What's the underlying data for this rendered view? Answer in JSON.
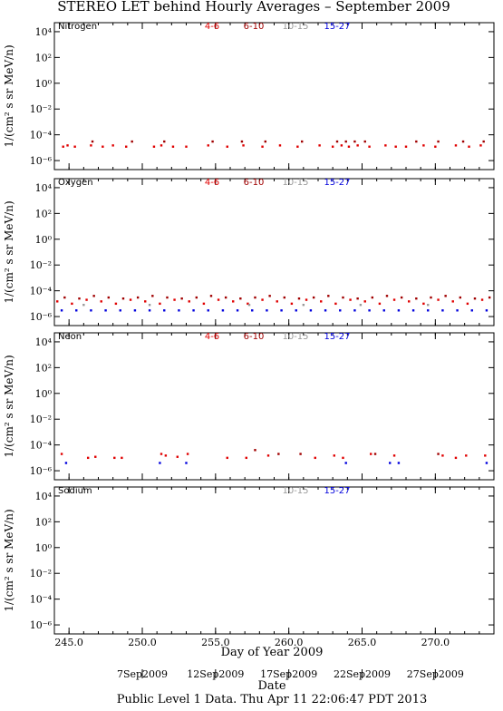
{
  "title": "STEREO LET behind Hourly Averages – September 2009",
  "x_axis": {
    "xlim": [
      244,
      274
    ],
    "xticks": [
      {
        "value": 245,
        "label": "245.0"
      },
      {
        "value": 250,
        "label": "250.0"
      },
      {
        "value": 255,
        "label": "255.0"
      },
      {
        "value": 260,
        "label": "260.0"
      },
      {
        "value": 265,
        "label": "265.0"
      },
      {
        "value": 270,
        "label": "270.0"
      }
    ],
    "xlabel": "Day of Year 2009",
    "date_ticks": [
      {
        "value": 250,
        "label": "7Sep2009"
      },
      {
        "value": 255,
        "label": "12Sep2009"
      },
      {
        "value": 260,
        "label": "17Sep2009"
      },
      {
        "value": 265,
        "label": "22Sep2009"
      },
      {
        "value": 270,
        "label": "27Sep2009"
      }
    ],
    "date_label": "Date"
  },
  "footer": "Public Level 1 Data. Thu Apr 11 22:06:47 PDT 2013",
  "chart_data": [
    {
      "type": "scatter",
      "title": "Nitrogen",
      "ylabel": "1/(cm² s sr MeV/n)",
      "log_y": true,
      "ylim": [
        2e-07,
        50000
      ],
      "yticks": [
        {
          "value": 10000,
          "label": "10⁴"
        },
        {
          "value": 100,
          "label": "10²"
        },
        {
          "value": 1,
          "label": "10⁰"
        },
        {
          "value": 0.01,
          "label": "10⁻²"
        },
        {
          "value": 0.0001,
          "label": "10⁻⁴"
        },
        {
          "value": 1e-06,
          "label": "10⁻⁶"
        }
      ],
      "series": [
        {
          "name": "4-6",
          "color": "#e00000",
          "x": [
            244.6,
            244.9,
            245.4,
            246.5,
            247.3,
            248.0,
            248.9,
            250.8,
            251.3,
            252.1,
            253.0,
            254.5,
            255.8,
            256.9,
            258.2,
            259.4,
            260.6,
            262.1,
            263.0,
            263.6,
            264.1,
            264.7,
            265.5,
            266.6,
            267.3,
            268.0,
            269.2,
            270.0,
            271.4,
            272.3,
            273.1
          ],
          "values": [
            1.2e-05,
            1.5e-05,
            1.2e-05,
            1.5e-05,
            1.2e-05,
            1.5e-05,
            1.2e-05,
            1.2e-05,
            1.5e-05,
            1.2e-05,
            1.2e-05,
            1.5e-05,
            1.2e-05,
            1.5e-05,
            1.2e-05,
            1.5e-05,
            1.2e-05,
            1.5e-05,
            1.2e-05,
            1.5e-05,
            1.2e-05,
            1.5e-05,
            1.2e-05,
            1.5e-05,
            1.2e-05,
            1.2e-05,
            1.5e-05,
            1.2e-05,
            1.5e-05,
            1.2e-05,
            1.5e-05
          ]
        },
        {
          "name": "6-10",
          "color": "#a00000",
          "x": [
            246.6,
            249.3,
            251.5,
            254.8,
            256.8,
            258.4,
            260.9,
            263.3,
            263.9,
            264.5,
            265.2,
            268.7,
            270.2,
            271.9,
            273.3
          ],
          "values": [
            3e-05,
            3e-05,
            3e-05,
            3e-05,
            3e-05,
            3e-05,
            3e-05,
            3e-05,
            3e-05,
            3e-05,
            3e-05,
            3e-05,
            3e-05,
            3e-05,
            3e-05
          ]
        },
        {
          "name": "10-15",
          "color": "#999999",
          "x": [],
          "values": []
        },
        {
          "name": "15-27",
          "color": "#0000dd",
          "x": [],
          "values": []
        }
      ]
    },
    {
      "type": "scatter",
      "title": "Oxygen",
      "ylabel": "1/(cm² s sr MeV/n)",
      "log_y": true,
      "ylim": [
        2e-07,
        50000
      ],
      "yticks": [
        {
          "value": 10000,
          "label": "10⁴"
        },
        {
          "value": 100,
          "label": "10²"
        },
        {
          "value": 1,
          "label": "10⁰"
        },
        {
          "value": 0.01,
          "label": "10⁻²"
        },
        {
          "value": 0.0001,
          "label": "10⁻⁴"
        },
        {
          "value": 1e-06,
          "label": "10⁻⁶"
        }
      ],
      "series": [
        {
          "name": "4-6",
          "color": "#e00000",
          "x": [
            244.2,
            245.2,
            246.2,
            247.2,
            248.2,
            249.2,
            250.2,
            251.2,
            252.2,
            253.2,
            254.2,
            255.2,
            256.2,
            257.2,
            258.2,
            259.2,
            260.2,
            261.2,
            262.2,
            263.2,
            264.2,
            265.2,
            266.2,
            267.2,
            268.2,
            269.2,
            270.2,
            271.2,
            272.2,
            273.2
          ],
          "values": [
            1.5e-05,
            1e-05,
            2e-05,
            1.5e-05,
            1e-05,
            2e-05,
            1.5e-05,
            1e-05,
            2e-05,
            1.5e-05,
            1e-05,
            2e-05,
            1.5e-05,
            1e-05,
            2e-05,
            1.5e-05,
            1e-05,
            2e-05,
            1.5e-05,
            1e-05,
            2e-05,
            1.5e-05,
            1e-05,
            2e-05,
            1.5e-05,
            1e-05,
            2e-05,
            1.5e-05,
            1e-05,
            2e-05
          ]
        },
        {
          "name": "6-10",
          "color": "#a00000",
          "x": [
            244.7,
            245.7,
            246.7,
            247.7,
            248.7,
            249.7,
            250.7,
            251.7,
            252.7,
            253.7,
            254.7,
            255.7,
            256.7,
            257.7,
            258.7,
            259.7,
            260.7,
            261.7,
            262.7,
            263.7,
            264.7,
            265.7,
            266.7,
            267.7,
            268.7,
            269.7,
            270.7,
            271.7,
            272.7,
            273.7
          ],
          "values": [
            3e-05,
            2.5e-05,
            4e-05,
            3e-05,
            2.5e-05,
            3e-05,
            4e-05,
            3e-05,
            2.5e-05,
            3e-05,
            4e-05,
            3e-05,
            2.5e-05,
            3e-05,
            4e-05,
            3e-05,
            2.5e-05,
            3e-05,
            4e-05,
            3e-05,
            2.5e-05,
            3e-05,
            4e-05,
            3e-05,
            2.5e-05,
            3e-05,
            4e-05,
            3e-05,
            2.5e-05,
            3e-05
          ]
        },
        {
          "name": "10-15",
          "color": "#999999",
          "x": [
            246.0,
            250.5,
            257.3,
            261.0,
            264.9,
            269.5
          ],
          "values": [
            8e-06,
            8e-06,
            8e-06,
            8e-06,
            8e-06,
            8e-06
          ]
        },
        {
          "name": "15-27",
          "color": "#0000dd",
          "x": [
            244.5,
            245.5,
            246.5,
            247.5,
            248.5,
            249.5,
            250.5,
            251.5,
            252.5,
            253.5,
            254.5,
            255.5,
            256.5,
            257.5,
            258.5,
            259.5,
            260.5,
            261.5,
            262.5,
            263.5,
            264.5,
            265.5,
            266.5,
            267.5,
            268.5,
            269.5,
            270.5,
            271.5,
            272.5,
            273.5
          ],
          "values": [
            3e-06,
            3e-06,
            3e-06,
            3e-06,
            3e-06,
            3e-06,
            3e-06,
            3e-06,
            3e-06,
            3e-06,
            3e-06,
            3e-06,
            3e-06,
            3e-06,
            3e-06,
            3e-06,
            3e-06,
            3e-06,
            3e-06,
            3e-06,
            3e-06,
            3e-06,
            3e-06,
            3e-06,
            3e-06,
            3e-06,
            3e-06,
            3e-06,
            3e-06,
            3e-06
          ]
        }
      ]
    },
    {
      "type": "scatter",
      "title": "Neon",
      "ylabel": "1/(cm² s sr MeV/n)",
      "log_y": true,
      "ylim": [
        2e-07,
        50000
      ],
      "yticks": [
        {
          "value": 10000,
          "label": "10⁴"
        },
        {
          "value": 100,
          "label": "10²"
        },
        {
          "value": 1,
          "label": "10⁰"
        },
        {
          "value": 0.01,
          "label": "10⁻²"
        },
        {
          "value": 0.0001,
          "label": "10⁻⁴"
        },
        {
          "value": 1e-06,
          "label": "10⁻⁶"
        }
      ],
      "series": [
        {
          "name": "4-6",
          "color": "#e00000",
          "x": [
            244.5,
            246.3,
            246.8,
            248.1,
            248.6,
            251.3,
            251.6,
            252.4,
            253.1,
            255.8,
            257.1,
            258.6,
            261.8,
            263.1,
            263.7,
            265.6,
            267.2,
            270.5,
            271.4,
            272.1,
            273.4
          ],
          "values": [
            2e-05,
            1e-05,
            1.2e-05,
            1e-05,
            1e-05,
            2e-05,
            1.5e-05,
            1.2e-05,
            2e-05,
            1e-05,
            1e-05,
            1.5e-05,
            1e-05,
            1.5e-05,
            1e-05,
            2e-05,
            1.5e-05,
            1.5e-05,
            1e-05,
            1.5e-05,
            1.5e-05
          ]
        },
        {
          "name": "6-10",
          "color": "#a00000",
          "x": [
            257.7,
            259.3,
            260.8,
            265.9,
            270.2
          ],
          "values": [
            4e-05,
            2e-05,
            2e-05,
            2e-05,
            2e-05
          ]
        },
        {
          "name": "10-15",
          "color": "#999999",
          "x": [],
          "values": []
        },
        {
          "name": "15-27",
          "color": "#0000dd",
          "x": [
            244.8,
            251.2,
            253.0,
            263.9,
            266.9,
            267.5,
            273.5
          ],
          "values": [
            4e-06,
            4e-06,
            4e-06,
            4e-06,
            4e-06,
            4e-06,
            4e-06
          ]
        }
      ]
    },
    {
      "type": "scatter",
      "title": "Sodium",
      "ylabel": "1/(cm² s sr MeV/n)",
      "log_y": true,
      "ylim": [
        2e-07,
        50000
      ],
      "yticks": [
        {
          "value": 10000,
          "label": "10⁴"
        },
        {
          "value": 100,
          "label": "10²"
        },
        {
          "value": 1,
          "label": "10⁰"
        },
        {
          "value": 0.01,
          "label": "10⁻²"
        },
        {
          "value": 0.0001,
          "label": "10⁻⁴"
        },
        {
          "value": 1e-06,
          "label": "10⁻⁶"
        }
      ],
      "series": [
        {
          "name": "10-15",
          "color": "#999999",
          "x": [],
          "values": []
        },
        {
          "name": "15-27",
          "color": "#0000dd",
          "x": [],
          "values": []
        }
      ]
    }
  ]
}
